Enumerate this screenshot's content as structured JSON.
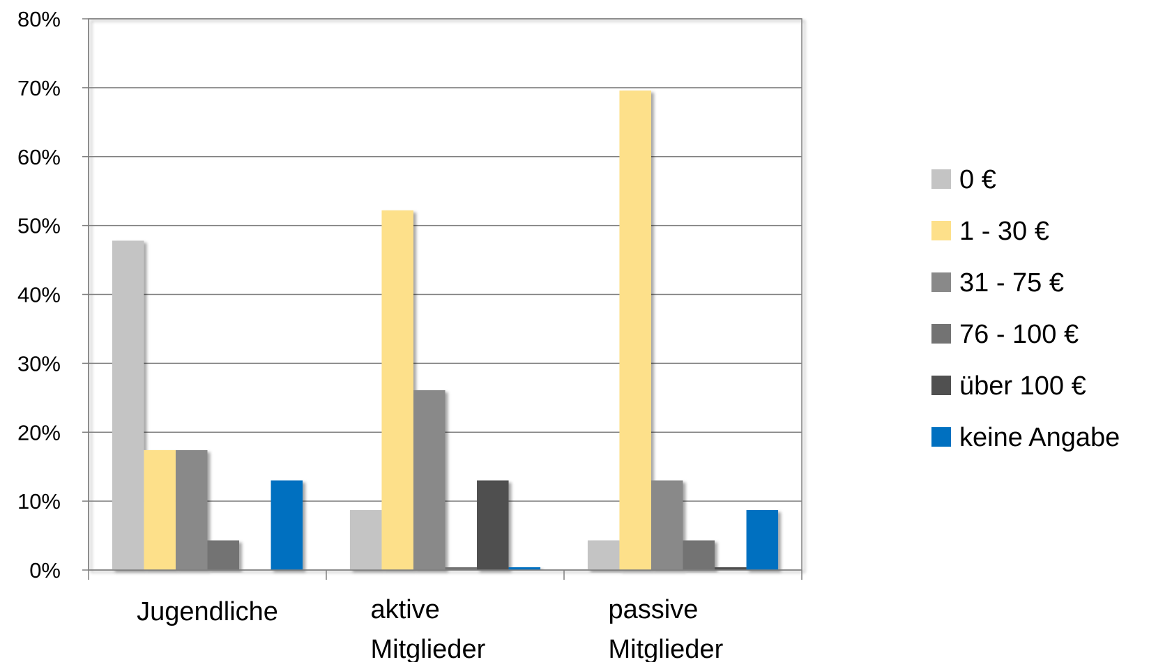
{
  "chart_data": {
    "type": "bar",
    "categories": [
      [
        "Jugendliche"
      ],
      [
        "aktive",
        "Mitglieder"
      ],
      [
        "passive",
        "Mitglieder"
      ]
    ],
    "series": [
      {
        "name": "0 €",
        "color": "#c4c4c4",
        "values": [
          47.8,
          8.7,
          4.3
        ]
      },
      {
        "name": "1 - 30 €",
        "color": "#fde08a",
        "values": [
          17.4,
          52.2,
          69.6
        ]
      },
      {
        "name": "31 - 75 €",
        "color": "#898989",
        "values": [
          17.4,
          26.1,
          13.0
        ]
      },
      {
        "name": "76 - 100 €",
        "color": "#737373",
        "values": [
          4.3,
          0.4,
          4.3
        ]
      },
      {
        "name": "über 100 €",
        "color": "#505050",
        "values": [
          0,
          13.0,
          0.4
        ]
      },
      {
        "name": "keine Angabe",
        "color": "#0070c0",
        "values": [
          13.0,
          0.4,
          8.7
        ]
      }
    ],
    "y_ticks": [
      "0%",
      "10%",
      "20%",
      "30%",
      "40%",
      "50%",
      "60%",
      "70%",
      "80%"
    ],
    "ylim": [
      0,
      80
    ],
    "grid": true,
    "legend_position": "right"
  }
}
